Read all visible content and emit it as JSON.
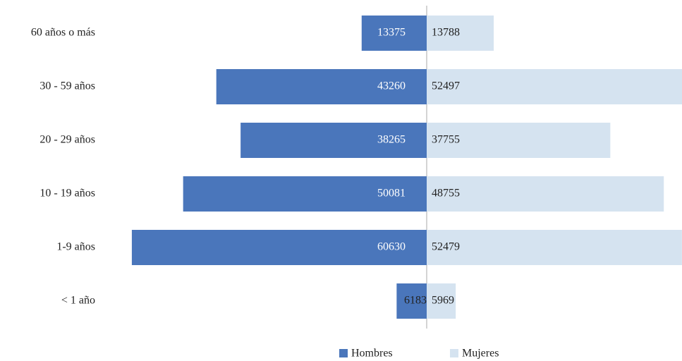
{
  "chart_data": {
    "type": "bar",
    "categories": [
      "60 años o más",
      "30 - 59 años",
      "20 - 29 años",
      "10 - 19 años",
      "1-9 años",
      "< 1 año"
    ],
    "series": [
      {
        "name": "Hombres",
        "color": "#4a76bb",
        "values": [
          13375,
          43260,
          38265,
          50081,
          60630,
          6183
        ]
      },
      {
        "name": "Mujeres",
        "color": "#d5e3f0",
        "values": [
          13788,
          52497,
          37755,
          48755,
          52479,
          5969
        ]
      }
    ]
  }
}
